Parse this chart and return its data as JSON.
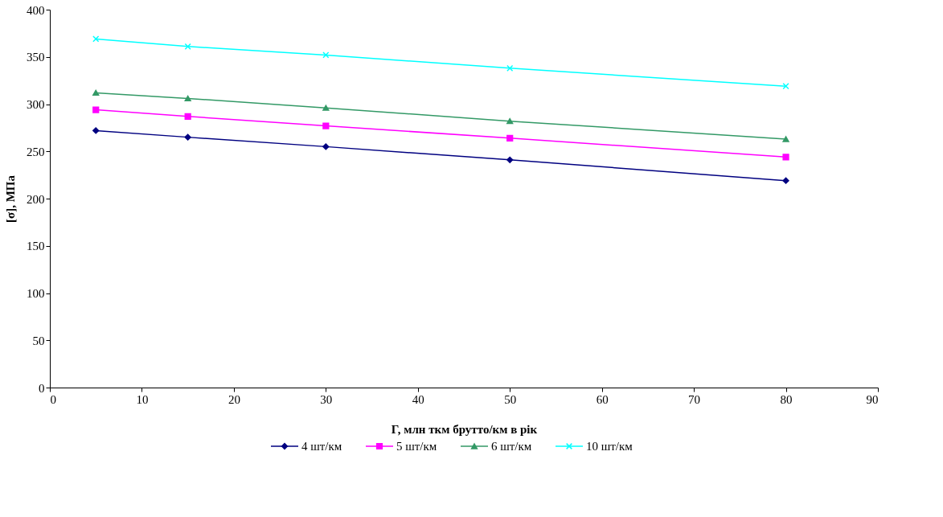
{
  "chart_data": {
    "type": "line",
    "xlabel": "Г, млн ткм брутто/км в рік",
    "ylabel": "[σ], МПа",
    "x": [
      5,
      15,
      30,
      50,
      80
    ],
    "series": [
      {
        "name": "4 шт/км",
        "color": "#000080",
        "marker": "diamond",
        "values": [
          272,
          265,
          255,
          241,
          219
        ]
      },
      {
        "name": "5 шт/км",
        "color": "#ff00ff",
        "marker": "square",
        "values": [
          294,
          287,
          277,
          264,
          244
        ]
      },
      {
        "name": "6 шт/км",
        "color": "#339966",
        "marker": "triangle",
        "values": [
          312,
          306,
          296,
          282,
          263
        ]
      },
      {
        "name": "10 шт/км",
        "color": "#00ffff",
        "marker": "cross",
        "values": [
          369,
          361,
          352,
          338,
          319
        ]
      }
    ],
    "xlim": [
      0,
      90
    ],
    "xticks": [
      0,
      10,
      20,
      30,
      40,
      50,
      60,
      70,
      80,
      90
    ],
    "ylim": [
      0,
      400
    ],
    "yticks": [
      0,
      50,
      100,
      150,
      200,
      250,
      300,
      350,
      400
    ],
    "grid": false,
    "legend": "bottom",
    "line_style": "solid"
  }
}
